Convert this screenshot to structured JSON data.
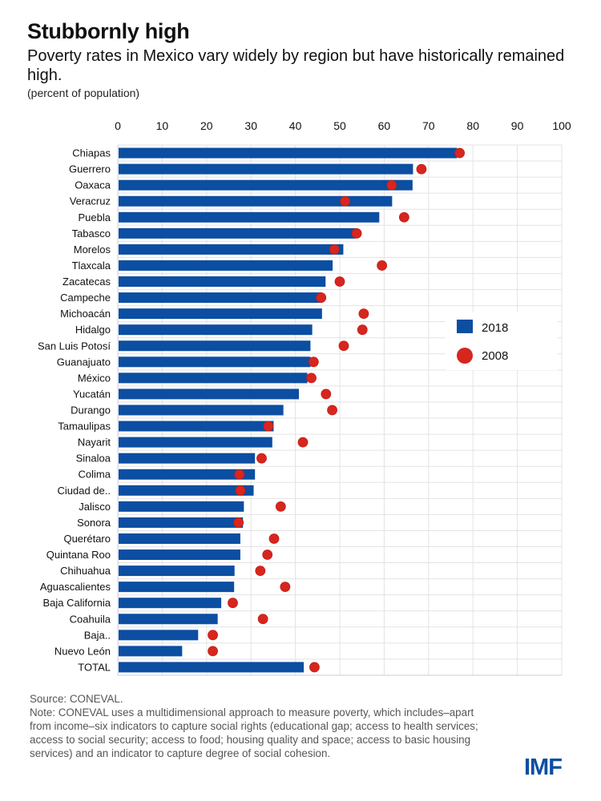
{
  "header": {
    "title": "Stubbornly high",
    "subtitle": "Poverty rates in Mexico vary widely by region but have historically remained high.",
    "unit": "(percent of population)"
  },
  "footer": {
    "source": "Source: CONEVAL.",
    "note": "Note: CONEVAL uses a multidimensional approach to measure poverty, which includes–apart from income–six indicators to capture social rights (educational gap; access to health services; access to social security; access to food; housing quality and space; access to basic housing services) and an indicator to capture degree of social cohesion.",
    "logo": "IMF"
  },
  "colors": {
    "bar": "#0b4ea2",
    "dot": "#d7261e",
    "grid": "#e3e3e3"
  },
  "chart_data": {
    "type": "bar",
    "orientation": "horizontal",
    "title": "Stubbornly high",
    "xlabel": "percent of population",
    "xlim": [
      0,
      100
    ],
    "xticks": [
      0,
      10,
      20,
      30,
      40,
      50,
      60,
      70,
      80,
      90,
      100
    ],
    "grid": true,
    "legend_position": "right-middle",
    "categories": [
      "Chiapas",
      "Guerrero",
      "Oaxaca",
      "Veracruz",
      "Puebla",
      "Tabasco",
      "Morelos",
      "Tlaxcala",
      "Zacatecas",
      "Campeche",
      "Michoacán",
      "Hidalgo",
      "San Luis Potosí",
      "Guanajuato",
      "México",
      "Yucatán",
      "Durango",
      "Tamaulipas",
      "Nayarit",
      "Sinaloa",
      "Colima",
      "Ciudad de..",
      "Jalisco",
      "Sonora",
      "Querétaro",
      "Quintana Roo",
      "Chihuahua",
      "Aguascalientes",
      "Baja California",
      "Coahuila",
      "Baja..",
      "Nuevo León",
      "TOTAL"
    ],
    "series": [
      {
        "name": "2018",
        "type": "bar",
        "values": [
          76.4,
          66.5,
          66.4,
          61.8,
          58.9,
          53.6,
          50.8,
          48.4,
          46.8,
          46.0,
          46.0,
          43.8,
          43.4,
          43.4,
          42.7,
          40.8,
          37.3,
          35.1,
          34.8,
          30.9,
          30.9,
          30.6,
          28.4,
          28.2,
          27.6,
          27.6,
          26.3,
          26.2,
          23.3,
          22.5,
          18.1,
          14.5,
          41.9
        ]
      },
      {
        "name": "2008",
        "type": "dot",
        "values": [
          77.0,
          68.4,
          61.7,
          51.2,
          64.5,
          53.8,
          48.8,
          59.5,
          50.0,
          45.8,
          55.4,
          55.1,
          50.9,
          44.1,
          43.6,
          46.9,
          48.3,
          33.9,
          41.7,
          32.4,
          27.4,
          27.6,
          36.7,
          27.2,
          35.2,
          33.7,
          32.1,
          37.7,
          25.9,
          32.7,
          21.4,
          21.4,
          44.3
        ]
      }
    ]
  }
}
